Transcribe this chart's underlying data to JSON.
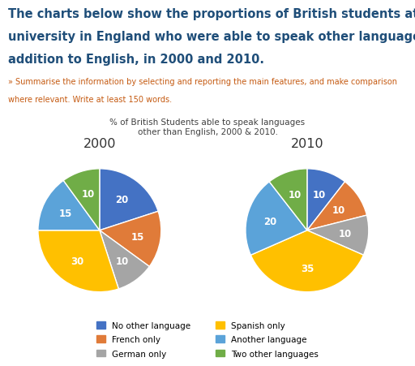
{
  "title_lines": [
    "The charts below show the proportions of British students at one",
    "university in England who were able to speak other languages in",
    "addition to English, in 2000 and 2010."
  ],
  "subtitle_lines": [
    "» Summarise the information by selecting and reporting the main features, and make comparison",
    "where relevant. Write at least 150 words."
  ],
  "chart_title": "% of British Students able to speak languages\nother than English, 2000 & 2010.",
  "pie1_label": "2000",
  "pie2_label": "2010",
  "categories": [
    "No other language",
    "French only",
    "German only",
    "Spanish only",
    "Another language",
    "Two other languages"
  ],
  "colors": [
    "#4472C4",
    "#E07B39",
    "#A5A5A5",
    "#FFC000",
    "#5BA3D9",
    "#70AD47"
  ],
  "pie1_values": [
    20,
    15,
    10,
    30,
    15,
    10
  ],
  "pie2_values": [
    10,
    10,
    10,
    35,
    20,
    10
  ],
  "title_color": "#1F4E79",
  "subtitle_color": "#C55A11",
  "chart_title_color": "#404040",
  "background_color": "#FFFFFF",
  "label_color": "#333333",
  "title_fontsize": 10.5,
  "subtitle_fontsize": 7.0,
  "chart_title_fontsize": 7.5,
  "pie_label_fontsize": 11.5,
  "wedge_label_fontsize": 8.5,
  "legend_fontsize": 7.5
}
